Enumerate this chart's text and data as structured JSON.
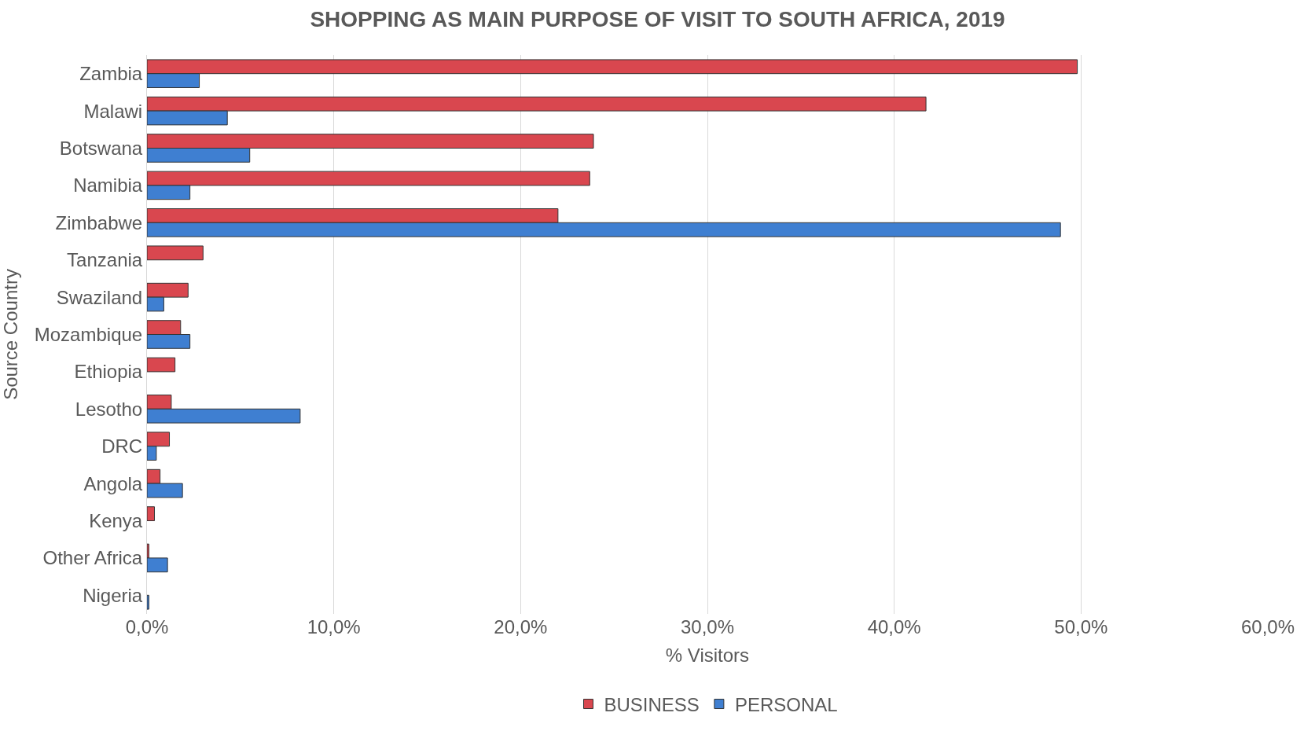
{
  "chart_data": {
    "type": "bar",
    "orientation": "horizontal",
    "title": "SHOPPING AS MAIN PURPOSE OF VISIT TO SOUTH AFRICA, 2019",
    "xlabel": "% Visitors",
    "ylabel": "Source Country",
    "categories": [
      "Zambia",
      "Malawi",
      "Botswana",
      "Namibia",
      "Zimbabwe",
      "Tanzania",
      "Swaziland",
      "Mozambique",
      "Ethiopia",
      "Lesotho",
      "DRC",
      "Angola",
      "Kenya",
      "Other Africa",
      "Nigeria"
    ],
    "series": [
      {
        "name": "BUSINESS",
        "color": "#d9474f",
        "values": [
          49.8,
          41.7,
          23.9,
          23.7,
          22.0,
          3.0,
          2.2,
          1.8,
          1.5,
          1.3,
          1.2,
          0.7,
          0.4,
          0.1,
          null
        ]
      },
      {
        "name": "PERSONAL",
        "color": "#3f7fd1",
        "values": [
          2.8,
          4.3,
          5.5,
          2.3,
          48.9,
          null,
          0.9,
          2.3,
          null,
          8.2,
          0.5,
          1.9,
          null,
          1.1,
          0.1
        ]
      }
    ],
    "xlim": [
      0,
      60
    ],
    "xticks": [
      {
        "value": 0,
        "label": "0,0%"
      },
      {
        "value": 10,
        "label": "10,0%"
      },
      {
        "value": 20,
        "label": "20,0%"
      },
      {
        "value": 30,
        "label": "30,0%"
      },
      {
        "value": 40,
        "label": "40,0%"
      },
      {
        "value": 50,
        "label": "50,0%"
      },
      {
        "value": 60,
        "label": "60,0%"
      }
    ],
    "grid": "x",
    "legend": "bottom"
  }
}
